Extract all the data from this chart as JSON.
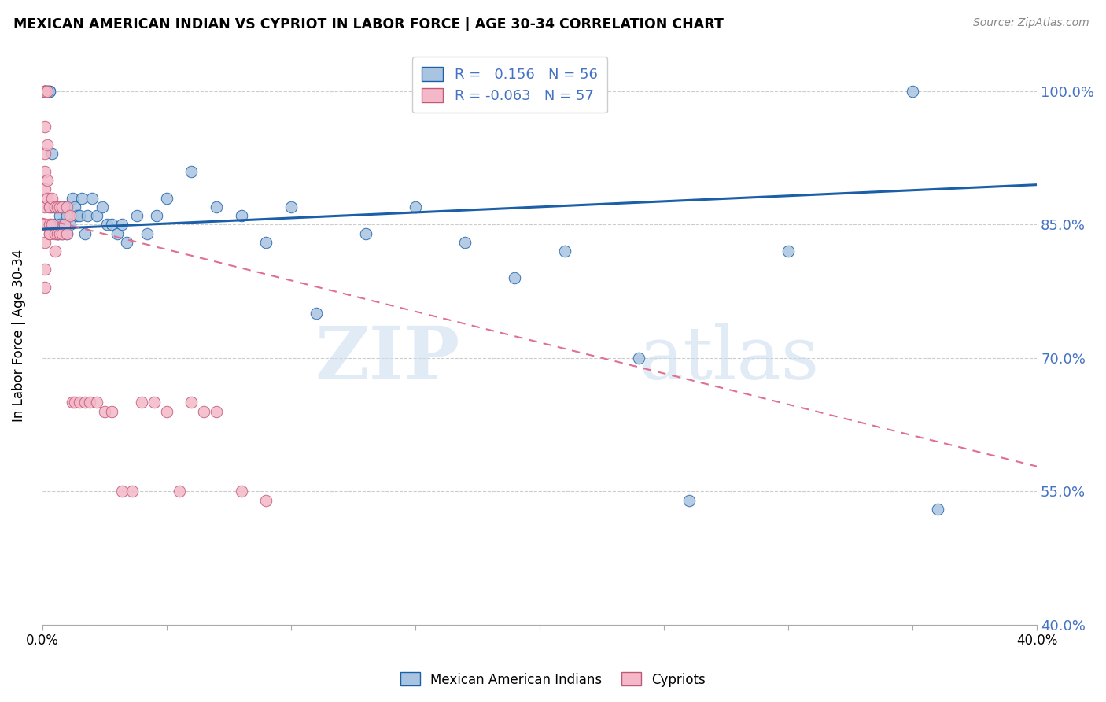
{
  "title": "MEXICAN AMERICAN INDIAN VS CYPRIOT IN LABOR FORCE | AGE 30-34 CORRELATION CHART",
  "source": "Source: ZipAtlas.com",
  "ylabel": "In Labor Force | Age 30-34",
  "xlim": [
    0.0,
    0.4
  ],
  "ylim": [
    0.4,
    1.05
  ],
  "yticks": [
    1.0,
    0.85,
    0.7,
    0.55,
    0.4
  ],
  "ytick_labels": [
    "100.0%",
    "85.0%",
    "70.0%",
    "55.0%",
    "40.0%"
  ],
  "xticks": [
    0.0,
    0.05,
    0.1,
    0.15,
    0.2,
    0.25,
    0.3,
    0.35,
    0.4
  ],
  "xtick_labels": [
    "0.0%",
    "",
    "",
    "",
    "",
    "",
    "",
    "",
    "40.0%"
  ],
  "blue_r": 0.156,
  "blue_n": 56,
  "pink_r": -0.063,
  "pink_n": 57,
  "blue_color": "#a8c4e0",
  "pink_color": "#f4b8c8",
  "blue_line_color": "#1a5fa8",
  "pink_line_color": "#e07090",
  "legend_label_blue": "Mexican American Indians",
  "legend_label_pink": "Cypriots",
  "blue_scatter_x": [
    0.001,
    0.001,
    0.002,
    0.002,
    0.003,
    0.003,
    0.004,
    0.004,
    0.005,
    0.005,
    0.006,
    0.006,
    0.007,
    0.007,
    0.008,
    0.008,
    0.009,
    0.009,
    0.01,
    0.01,
    0.011,
    0.012,
    0.013,
    0.014,
    0.015,
    0.016,
    0.017,
    0.018,
    0.02,
    0.022,
    0.024,
    0.026,
    0.028,
    0.03,
    0.032,
    0.034,
    0.038,
    0.042,
    0.046,
    0.05,
    0.06,
    0.07,
    0.08,
    0.09,
    0.1,
    0.11,
    0.13,
    0.15,
    0.17,
    0.19,
    0.21,
    0.24,
    0.26,
    0.3,
    0.35,
    0.36
  ],
  "blue_scatter_y": [
    1.0,
    1.0,
    1.0,
    1.0,
    1.0,
    1.0,
    0.93,
    0.87,
    0.87,
    0.85,
    0.84,
    0.84,
    0.86,
    0.85,
    0.87,
    0.84,
    0.87,
    0.85,
    0.86,
    0.84,
    0.85,
    0.88,
    0.87,
    0.86,
    0.86,
    0.88,
    0.84,
    0.86,
    0.88,
    0.86,
    0.87,
    0.85,
    0.85,
    0.84,
    0.85,
    0.83,
    0.86,
    0.84,
    0.86,
    0.88,
    0.91,
    0.87,
    0.86,
    0.83,
    0.87,
    0.75,
    0.84,
    0.87,
    0.83,
    0.79,
    0.82,
    0.7,
    0.54,
    0.82,
    1.0,
    0.53
  ],
  "pink_scatter_x": [
    0.001,
    0.001,
    0.001,
    0.001,
    0.001,
    0.001,
    0.001,
    0.001,
    0.001,
    0.001,
    0.001,
    0.001,
    0.001,
    0.001,
    0.002,
    0.002,
    0.002,
    0.002,
    0.003,
    0.003,
    0.003,
    0.003,
    0.003,
    0.004,
    0.004,
    0.005,
    0.005,
    0.005,
    0.006,
    0.006,
    0.007,
    0.007,
    0.008,
    0.008,
    0.009,
    0.01,
    0.01,
    0.011,
    0.012,
    0.013,
    0.015,
    0.017,
    0.019,
    0.022,
    0.025,
    0.028,
    0.032,
    0.036,
    0.04,
    0.045,
    0.05,
    0.055,
    0.06,
    0.065,
    0.07,
    0.08,
    0.09
  ],
  "pink_scatter_y": [
    1.0,
    1.0,
    1.0,
    1.0,
    1.0,
    0.96,
    0.93,
    0.91,
    0.89,
    0.87,
    0.85,
    0.83,
    0.8,
    0.78,
    1.0,
    0.94,
    0.9,
    0.88,
    0.87,
    0.85,
    0.84,
    0.87,
    0.84,
    0.88,
    0.85,
    0.87,
    0.84,
    0.82,
    0.87,
    0.84,
    0.87,
    0.84,
    0.87,
    0.84,
    0.85,
    0.87,
    0.84,
    0.86,
    0.65,
    0.65,
    0.65,
    0.65,
    0.65,
    0.65,
    0.64,
    0.64,
    0.55,
    0.55,
    0.65,
    0.65,
    0.64,
    0.55,
    0.65,
    0.64,
    0.64,
    0.55,
    0.54
  ]
}
